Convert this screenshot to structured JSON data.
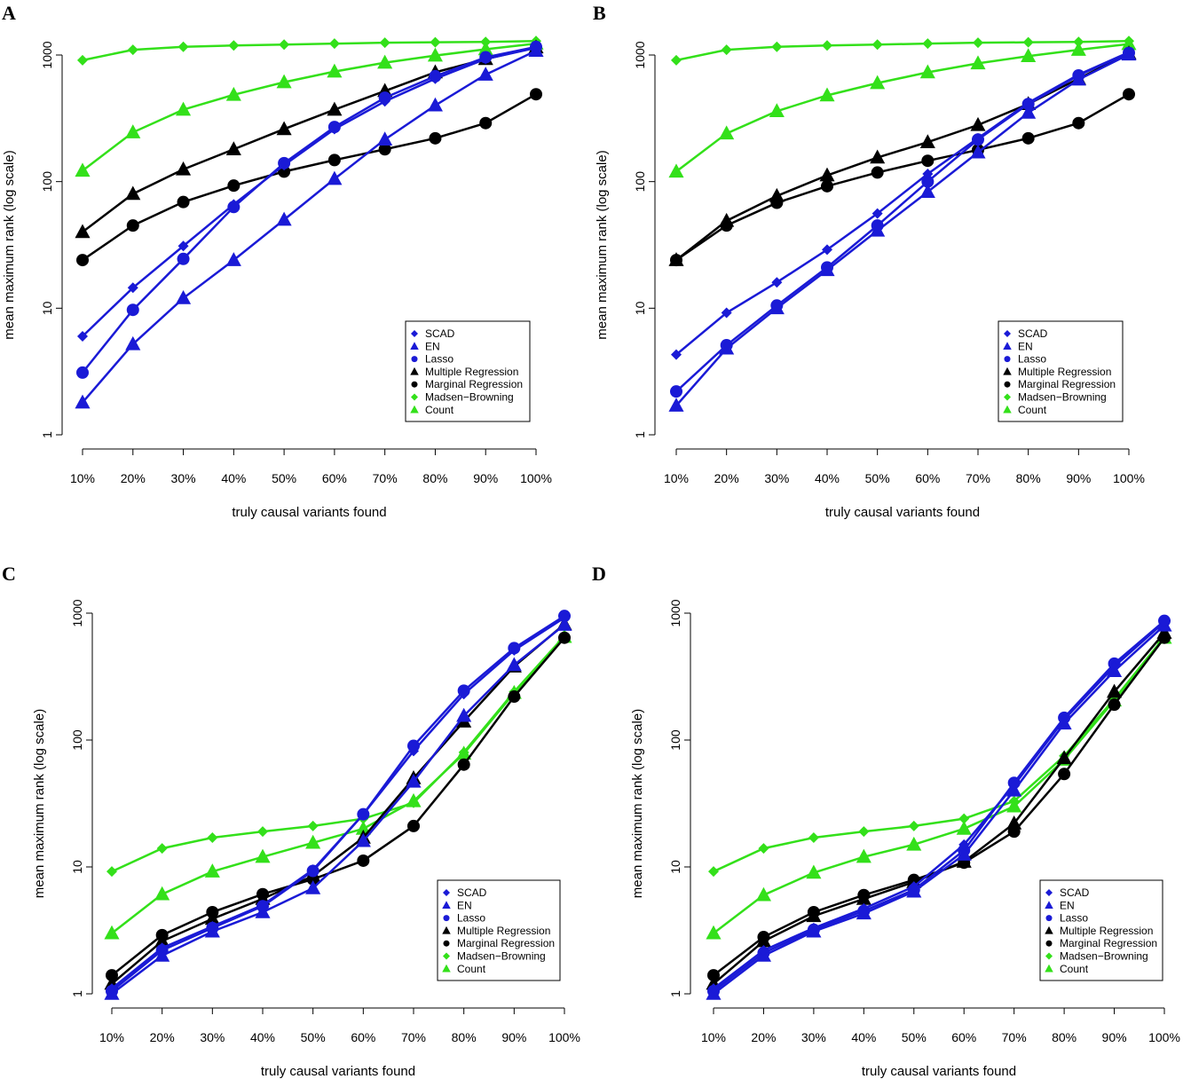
{
  "figure": {
    "panels": [
      "A",
      "B",
      "C",
      "D"
    ]
  },
  "colors": {
    "blue": "#1a1ad6",
    "black": "#000000",
    "green": "#33e01a"
  },
  "chart_data": [
    {
      "panel": "A",
      "type": "line",
      "xlabel": "truly causal variants found",
      "ylabel": "mean maximum rank (log scale)",
      "categories": [
        "10%",
        "20%",
        "30%",
        "40%",
        "50%",
        "60%",
        "70%",
        "80%",
        "90%",
        "100%"
      ],
      "ylim": [
        1,
        1000
      ],
      "yscale": "log",
      "yticks": [
        "1",
        "10",
        "100",
        "1000"
      ],
      "legend_position": "bottom-right",
      "series": [
        {
          "name": "SCAD",
          "color": "blue",
          "marker": "diamond",
          "values": [
            6,
            14.5,
            31,
            66,
            135,
            260,
            430,
            650,
            930,
            1140
          ]
        },
        {
          "name": "EN",
          "color": "blue",
          "marker": "triangle",
          "values": [
            1.8,
            5.2,
            12,
            24,
            50,
            105,
            215,
            400,
            700,
            1080
          ]
        },
        {
          "name": "Lasso",
          "color": "blue",
          "marker": "circle",
          "values": [
            3.1,
            9.7,
            24.5,
            63,
            140,
            270,
            460,
            680,
            960,
            1160
          ]
        },
        {
          "name": "Multiple Regression",
          "color": "black",
          "marker": "triangle",
          "values": [
            40,
            80,
            125,
            180,
            260,
            370,
            520,
            730,
            930,
            1150
          ]
        },
        {
          "name": "Marginal Regression",
          "color": "black",
          "marker": "circle",
          "values": [
            24,
            45,
            69,
            93,
            120,
            148,
            180,
            220,
            290,
            490
          ]
        },
        {
          "name": "Madsen−Browning",
          "color": "green",
          "marker": "diamond",
          "values": [
            910,
            1100,
            1160,
            1190,
            1210,
            1230,
            1250,
            1260,
            1270,
            1290
          ]
        },
        {
          "name": "Count",
          "color": "green",
          "marker": "triangle",
          "values": [
            122,
            245,
            370,
            485,
            610,
            740,
            870,
            990,
            1110,
            1230
          ]
        }
      ]
    },
    {
      "panel": "B",
      "type": "line",
      "xlabel": "truly causal variants found",
      "ylabel": "mean maximum rank (log scale)",
      "categories": [
        "10%",
        "20%",
        "30%",
        "40%",
        "50%",
        "60%",
        "70%",
        "80%",
        "90%",
        "100%"
      ],
      "ylim": [
        1,
        1000
      ],
      "yscale": "log",
      "yticks": [
        "1",
        "10",
        "100",
        "1000"
      ],
      "legend_position": "bottom-right",
      "series": [
        {
          "name": "SCAD",
          "color": "blue",
          "marker": "diamond",
          "values": [
            4.3,
            9.2,
            16,
            29,
            56,
            115,
            220,
            420,
            700,
            1050
          ]
        },
        {
          "name": "EN",
          "color": "blue",
          "marker": "triangle",
          "values": [
            1.7,
            4.8,
            10,
            20,
            41,
            83,
            170,
            350,
            640,
            1010
          ]
        },
        {
          "name": "Lasso",
          "color": "blue",
          "marker": "circle",
          "values": [
            2.2,
            5.1,
            10.5,
            21,
            45,
            100,
            215,
            410,
            690,
            1040
          ]
        },
        {
          "name": "Multiple Regression",
          "color": "black",
          "marker": "triangle",
          "values": [
            24,
            49,
            77,
            112,
            155,
            205,
            280,
            410,
            650,
            1030
          ]
        },
        {
          "name": "Marginal Regression",
          "color": "black",
          "marker": "circle",
          "values": [
            24,
            45,
            68,
            92,
            118,
            146,
            178,
            220,
            290,
            490
          ]
        },
        {
          "name": "Madsen−Browning",
          "color": "green",
          "marker": "diamond",
          "values": [
            910,
            1100,
            1160,
            1190,
            1210,
            1230,
            1250,
            1260,
            1270,
            1290
          ]
        },
        {
          "name": "Count",
          "color": "green",
          "marker": "triangle",
          "values": [
            120,
            240,
            360,
            480,
            600,
            730,
            860,
            980,
            1100,
            1220
          ]
        }
      ]
    },
    {
      "panel": "C",
      "type": "line",
      "xlabel": "truly causal variants found",
      "ylabel": "mean maximum rank (log scale)",
      "categories": [
        "10%",
        "20%",
        "30%",
        "40%",
        "50%",
        "60%",
        "70%",
        "80%",
        "90%",
        "100%"
      ],
      "ylim": [
        1,
        1000
      ],
      "yscale": "log",
      "yticks": [
        "1",
        "10",
        "100",
        "1000"
      ],
      "legend_position": "bottom-right",
      "series": [
        {
          "name": "SCAD",
          "color": "blue",
          "marker": "diamond",
          "values": [
            1.1,
            2.3,
            3.4,
            5.0,
            9.5,
            26,
            82,
            230,
            510,
            920
          ]
        },
        {
          "name": "EN",
          "color": "blue",
          "marker": "triangle",
          "values": [
            1.0,
            2.0,
            3.1,
            4.4,
            6.8,
            16,
            47,
            155,
            390,
            810
          ]
        },
        {
          "name": "Lasso",
          "color": "blue",
          "marker": "circle",
          "values": [
            1.05,
            2.2,
            3.3,
            4.9,
            9.3,
            26,
            90,
            245,
            530,
            950
          ]
        },
        {
          "name": "Multiple Regression",
          "color": "black",
          "marker": "triangle",
          "values": [
            1.2,
            2.6,
            3.9,
            5.6,
            8.5,
            17,
            50,
            140,
            380,
            820
          ]
        },
        {
          "name": "Marginal Regression",
          "color": "black",
          "marker": "circle",
          "values": [
            1.4,
            2.9,
            4.4,
            6.1,
            8.0,
            11.2,
            21,
            64,
            220,
            640
          ]
        },
        {
          "name": "Madsen−Browning",
          "color": "green",
          "marker": "diamond",
          "values": [
            9.2,
            14,
            17,
            19,
            21,
            24,
            32,
            80,
            240,
            660
          ]
        },
        {
          "name": "Count",
          "color": "green",
          "marker": "triangle",
          "values": [
            3.0,
            6.1,
            9.2,
            12,
            15.5,
            20,
            33,
            78,
            235,
            650
          ]
        }
      ]
    },
    {
      "panel": "D",
      "type": "line",
      "xlabel": "truly causal variants found",
      "ylabel": "mean maximum rank (log scale)",
      "categories": [
        "10%",
        "20%",
        "30%",
        "40%",
        "50%",
        "60%",
        "70%",
        "80%",
        "90%",
        "100%"
      ],
      "ylim": [
        1,
        1000
      ],
      "yscale": "log",
      "yticks": [
        "1",
        "10",
        "100",
        "1000"
      ],
      "legend_position": "bottom-right",
      "series": [
        {
          "name": "SCAD",
          "color": "blue",
          "marker": "diamond",
          "values": [
            1.1,
            2.2,
            3.3,
            4.7,
            7.0,
            15,
            44,
            145,
            380,
            850
          ]
        },
        {
          "name": "EN",
          "color": "blue",
          "marker": "triangle",
          "values": [
            1.0,
            2.0,
            3.1,
            4.3,
            6.4,
            12.5,
            40,
            135,
            350,
            800
          ]
        },
        {
          "name": "Lasso",
          "color": "blue",
          "marker": "circle",
          "values": [
            1.05,
            2.1,
            3.2,
            4.5,
            6.6,
            13.5,
            46,
            150,
            400,
            870
          ]
        },
        {
          "name": "Multiple Regression",
          "color": "black",
          "marker": "triangle",
          "values": [
            1.2,
            2.6,
            4.1,
            5.6,
            7.6,
            11,
            22,
            72,
            240,
            700
          ]
        },
        {
          "name": "Marginal Regression",
          "color": "black",
          "marker": "circle",
          "values": [
            1.4,
            2.8,
            4.4,
            6.0,
            7.9,
            10.8,
            19,
            54,
            190,
            640
          ]
        },
        {
          "name": "Madsen−Browning",
          "color": "green",
          "marker": "diamond",
          "values": [
            9.2,
            14,
            17,
            19,
            21,
            24,
            33,
            75,
            210,
            650
          ]
        },
        {
          "name": "Count",
          "color": "green",
          "marker": "triangle",
          "values": [
            3.0,
            6.0,
            9.0,
            12,
            15,
            20,
            30,
            70,
            205,
            640
          ]
        }
      ]
    }
  ]
}
